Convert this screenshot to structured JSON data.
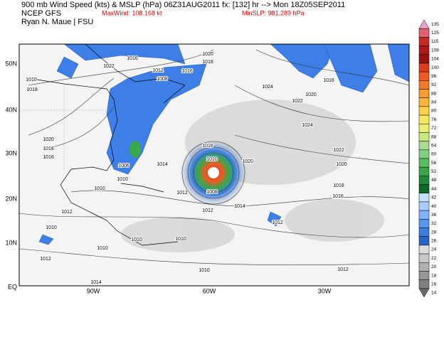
{
  "header": {
    "line1": "900 mb Wind Speed (kts) & MSLP (hPa) 06Z31AUG2011 fx: [132] hr --> Mon 18Z05SEP2011",
    "model": "NCEP GFS",
    "maxwind": "MaxWind: 108.168 kt",
    "minslp": "MinSLP: 981.289 hPa",
    "author": "Ryan N. Maue | FSU"
  },
  "map": {
    "lat_labels": [
      "50N",
      "40N",
      "30N",
      "20N",
      "10N",
      "EQ"
    ],
    "lon_labels": [
      "90W",
      "60W",
      "30W"
    ],
    "isobar_labels": [
      "1016",
      "1022",
      "1020",
      "1018",
      "1016",
      "1012",
      "1008",
      "1010",
      "1018",
      "1024",
      "1020",
      "1016",
      "1022",
      "1024",
      "1020",
      "1018",
      "1016",
      "1022",
      "1020",
      "1018",
      "1016",
      "1016",
      "1014",
      "1020",
      "1010",
      "1012",
      "1014",
      "1012",
      "1008",
      "1010",
      "1012",
      "1010",
      "1012",
      "1010",
      "1010",
      "1010",
      "1012",
      "1010",
      "1012",
      "1014",
      "1006",
      "1010"
    ]
  },
  "colorbar": {
    "labels": [
      "135",
      "125",
      "115",
      "108",
      "104",
      "100",
      "96",
      "92",
      "88",
      "84",
      "80",
      "76",
      "72",
      "68",
      "64",
      "60",
      "56",
      "52",
      "48",
      "44",
      "42",
      "40",
      "36",
      "32",
      "28",
      "26",
      "24",
      "22",
      "20",
      "18",
      "16",
      "14"
    ],
    "colors": [
      "#f0a0c8",
      "#e06070",
      "#c82828",
      "#b01818",
      "#981010",
      "#e03a1a",
      "#f05a20",
      "#f57a28",
      "#f89a30",
      "#fbb63a",
      "#fcd04a",
      "#f8e860",
      "#e8f070",
      "#c8e880",
      "#a8dc90",
      "#80d080",
      "#58c060",
      "#38a848",
      "#208838",
      "#106828",
      "#c8e0ff",
      "#a8ccff",
      "#80b4ff",
      "#5a98f0",
      "#3c7ee0",
      "#2864c8",
      "#dcdcdc",
      "#c8c8c8",
      "#b0b0b0",
      "#989898",
      "#808080",
      "#686868"
    ]
  }
}
